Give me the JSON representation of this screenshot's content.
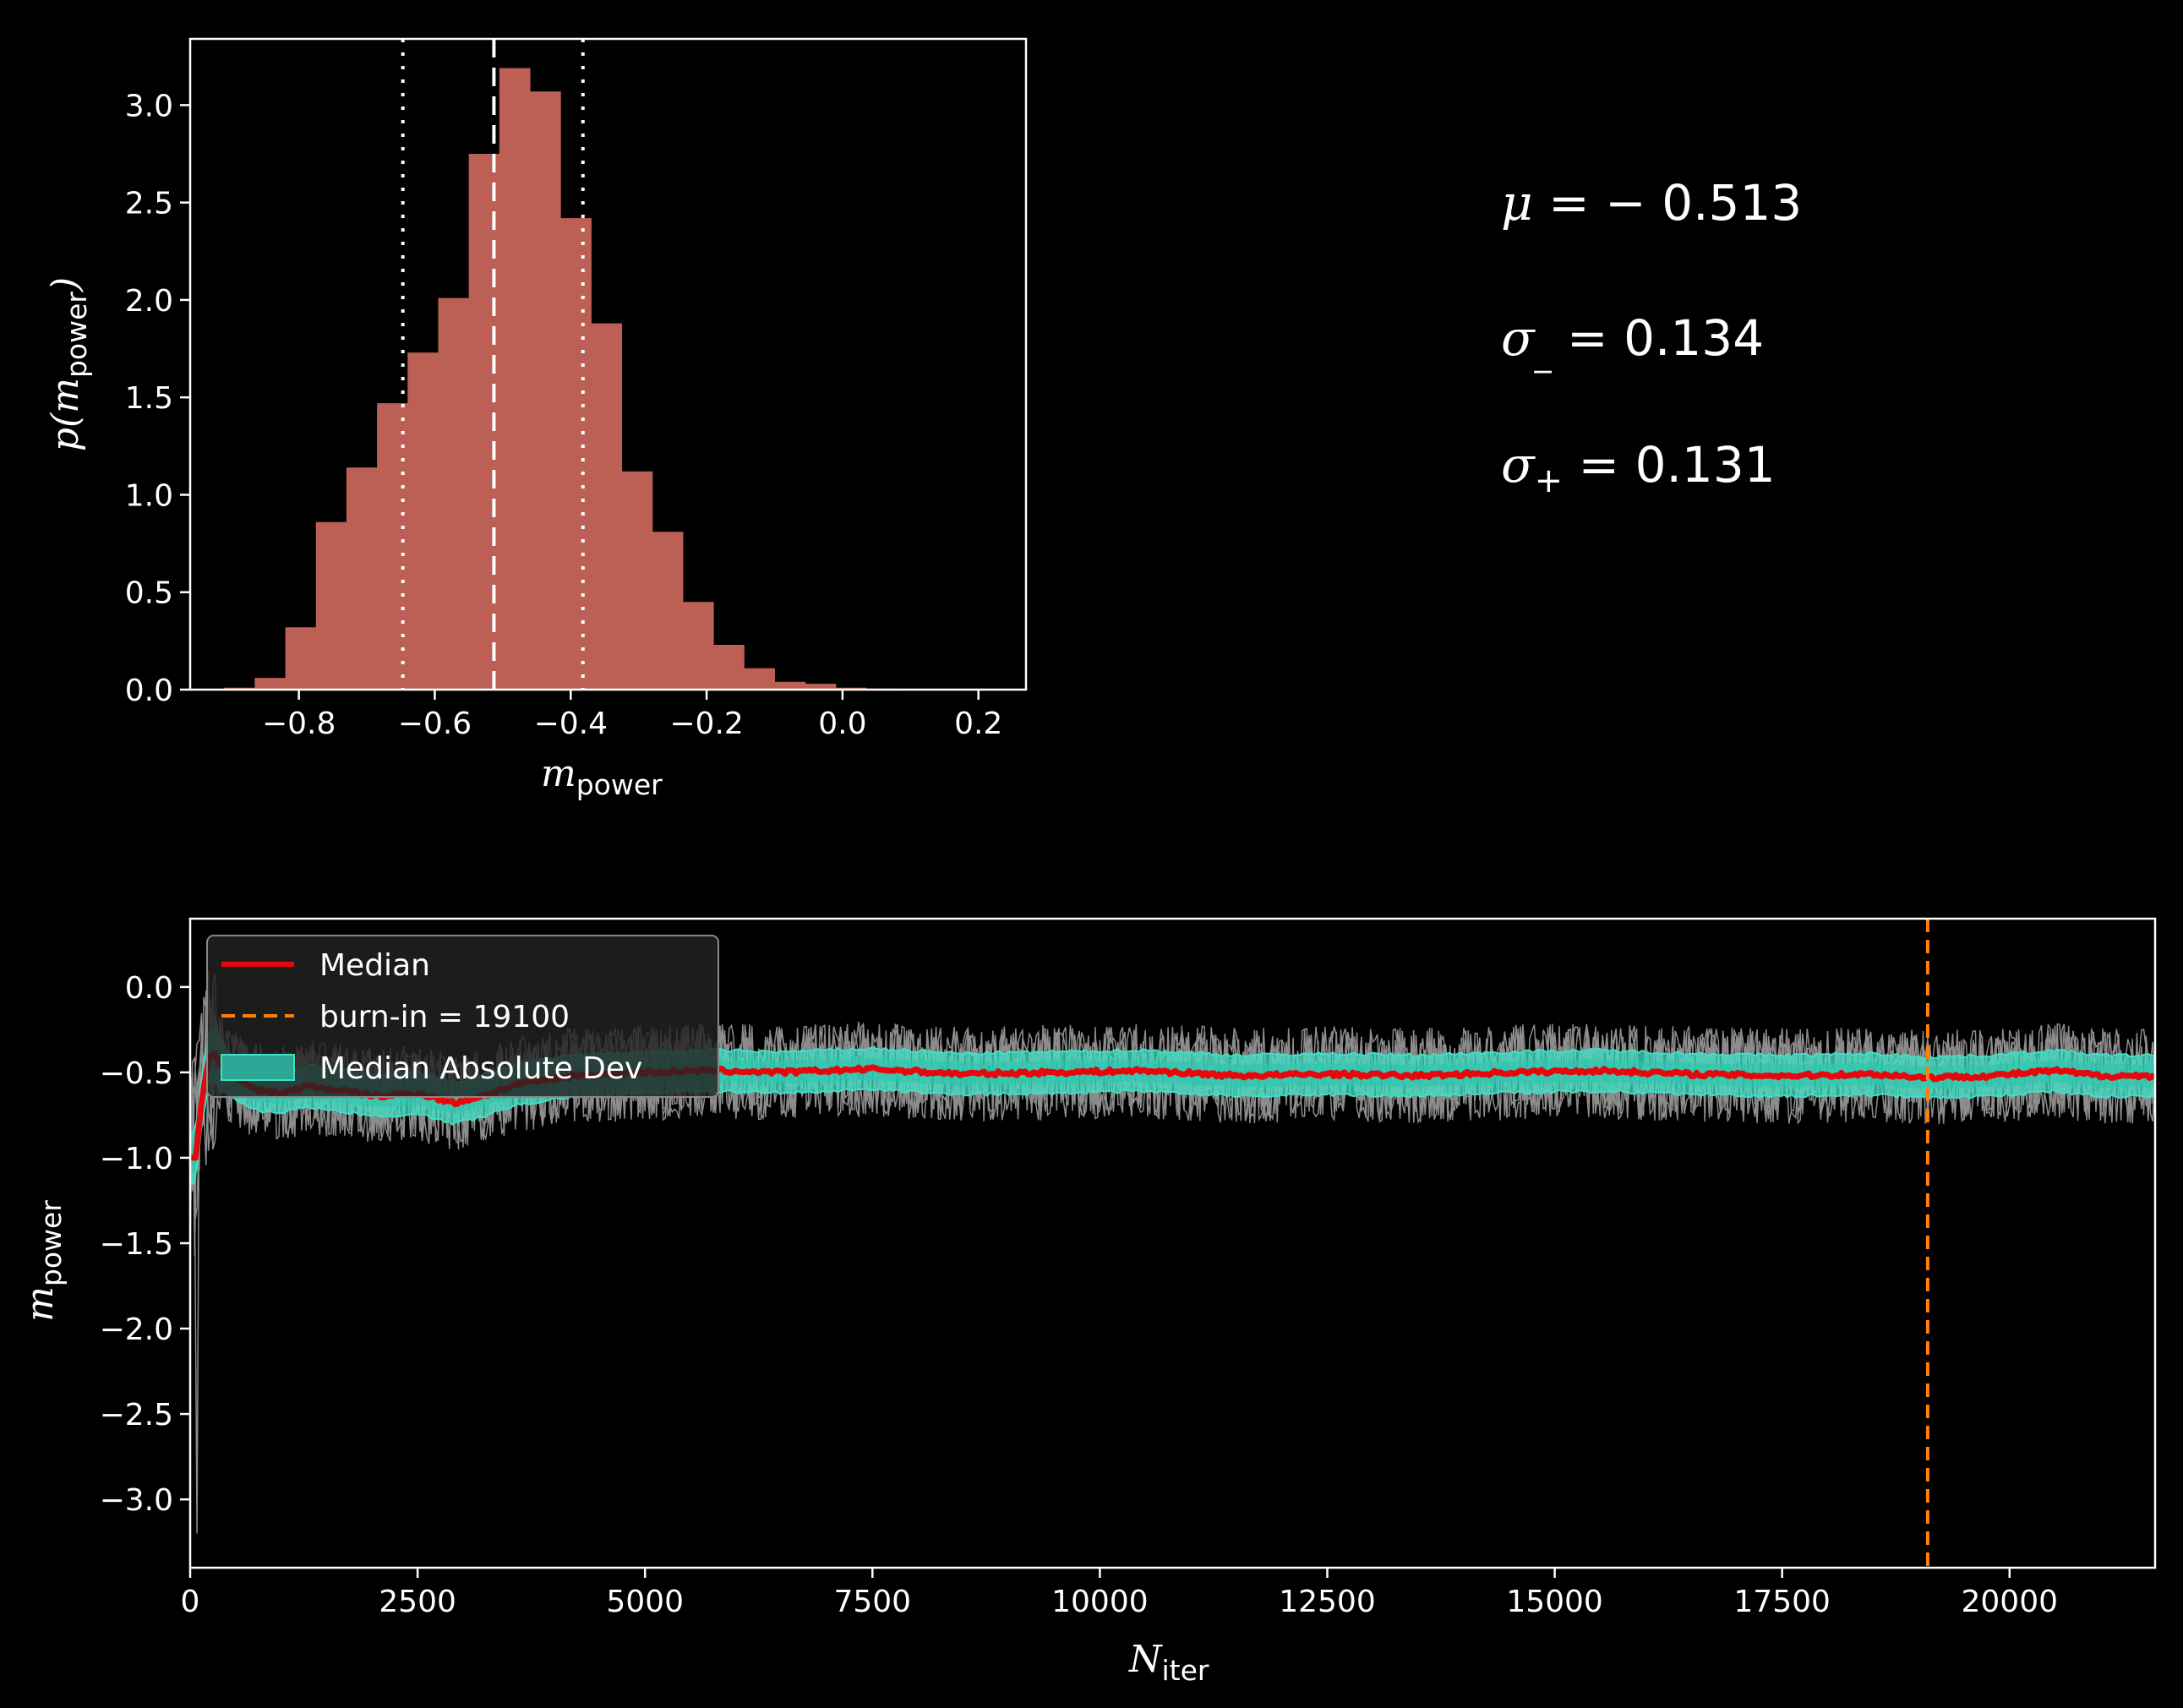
{
  "chart_data": [
    {
      "type": "bar",
      "name": "histogram",
      "xlabel": "m",
      "xlabel_sub": "power",
      "ylabel_pre": "p(",
      "ylabel_var": "m",
      "ylabel_sub": "power",
      "ylabel_post": ")",
      "xlim": [
        -0.96,
        0.27
      ],
      "ylim": [
        0,
        3.34
      ],
      "xticks": [
        "−0.8",
        "−0.6",
        "−0.4",
        "−0.2",
        "0.0",
        "0.2"
      ],
      "xtick_values": [
        -0.8,
        -0.6,
        -0.4,
        -0.2,
        0.0,
        0.2
      ],
      "yticks": [
        "0.0",
        "0.5",
        "1.0",
        "1.5",
        "2.0",
        "2.5",
        "3.0"
      ],
      "ytick_values": [
        0,
        0.5,
        1.0,
        1.5,
        2.0,
        2.5,
        3.0
      ],
      "bin_edges": [
        -0.91,
        -0.865,
        -0.82,
        -0.775,
        -0.73,
        -0.685,
        -0.64,
        -0.595,
        -0.55,
        -0.505,
        -0.46,
        -0.415,
        -0.37,
        -0.325,
        -0.28,
        -0.235,
        -0.19,
        -0.145,
        -0.1,
        -0.055,
        -0.01,
        0.035,
        0.08
      ],
      "values": [
        0.01,
        0.06,
        0.32,
        0.86,
        1.14,
        1.47,
        1.73,
        2.01,
        2.75,
        3.19,
        3.07,
        2.42,
        1.88,
        1.12,
        0.81,
        0.45,
        0.23,
        0.11,
        0.04,
        0.03,
        0.01,
        0.005
      ],
      "bar_color": "#bc6055",
      "median": -0.513,
      "lower": -0.647,
      "upper": -0.382
    },
    {
      "type": "line",
      "name": "trace",
      "xlabel": "N",
      "xlabel_sub": "iter",
      "ylabel": "m",
      "ylabel_sub": "power",
      "xlim": [
        0,
        21600
      ],
      "ylim": [
        -3.4,
        0.4
      ],
      "xticks": [
        "0",
        "2500",
        "5000",
        "7500",
        "10000",
        "12500",
        "15000",
        "17500",
        "20000"
      ],
      "xtick_values": [
        0,
        2500,
        5000,
        7500,
        10000,
        12500,
        15000,
        17500,
        20000
      ],
      "yticks": [
        "0.0",
        "−0.5",
        "−1.0",
        "−1.5",
        "−2.0",
        "−2.5",
        "−3.0"
      ],
      "ytick_values": [
        0,
        -0.5,
        -1.0,
        -1.5,
        -2.0,
        -2.5,
        -3.0
      ],
      "median_points": [
        [
          0,
          -1.0
        ],
        [
          60,
          -1.0
        ],
        [
          120,
          -0.7
        ],
        [
          200,
          -0.42
        ],
        [
          260,
          -0.38
        ],
        [
          320,
          -0.45
        ],
        [
          450,
          -0.52
        ],
        [
          700,
          -0.6
        ],
        [
          1000,
          -0.62
        ],
        [
          1300,
          -0.58
        ],
        [
          1700,
          -0.61
        ],
        [
          2100,
          -0.64
        ],
        [
          2500,
          -0.62
        ],
        [
          2900,
          -0.68
        ],
        [
          3200,
          -0.64
        ],
        [
          3600,
          -0.57
        ],
        [
          4200,
          -0.52
        ],
        [
          5000,
          -0.5
        ],
        [
          5800,
          -0.49
        ],
        [
          6500,
          -0.5
        ],
        [
          7500,
          -0.48
        ],
        [
          8500,
          -0.51
        ],
        [
          9500,
          -0.5
        ],
        [
          10500,
          -0.49
        ],
        [
          11500,
          -0.52
        ],
        [
          12500,
          -0.51
        ],
        [
          13500,
          -0.52
        ],
        [
          14500,
          -0.5
        ],
        [
          15500,
          -0.49
        ],
        [
          16500,
          -0.51
        ],
        [
          17500,
          -0.52
        ],
        [
          18500,
          -0.51
        ],
        [
          19100,
          -0.53
        ],
        [
          19800,
          -0.52
        ],
        [
          20500,
          -0.49
        ],
        [
          21000,
          -0.52
        ],
        [
          21600,
          -0.52
        ]
      ],
      "mad_halfwidth": 0.12,
      "burnin": 19100,
      "legend": {
        "placement": "upper-left",
        "entries": [
          "Median",
          "burn-in = 19100",
          "Median Absolute Dev"
        ]
      },
      "colors": {
        "median": "#e8070c",
        "burnin": "#ff7f0e",
        "mad": "#3fe0c5",
        "walkers": "#ffffff"
      }
    }
  ],
  "stats": {
    "mu_sym": "μ",
    "mu_val": " = − 0.513",
    "sigma_minus_sym": "σ",
    "sigma_minus_sub": "_",
    "sigma_minus_val": " = 0.134",
    "sigma_plus_sym": "σ",
    "sigma_plus_sub": "+",
    "sigma_plus_val": " = 0.131"
  }
}
